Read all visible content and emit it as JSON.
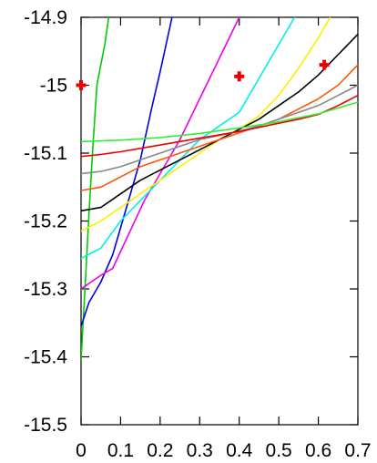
{
  "chart_data": {
    "type": "line",
    "title": "",
    "xlabel": "",
    "ylabel": "",
    "xlim": [
      0,
      0.7
    ],
    "ylim": [
      -15.5,
      -14.9
    ],
    "x_ticks": [
      {
        "value": 0,
        "label": "0"
      },
      {
        "value": 0.1,
        "label": "0.1"
      },
      {
        "value": 0.2,
        "label": "0.2"
      },
      {
        "value": 0.3,
        "label": "0.3"
      },
      {
        "value": 0.4,
        "label": "0.4"
      },
      {
        "value": 0.5,
        "label": "0.5"
      },
      {
        "value": 0.6,
        "label": "0.6"
      },
      {
        "value": 0.7,
        "label": "0.7"
      }
    ],
    "y_ticks": [
      {
        "value": -14.9,
        "label": "-14.9"
      },
      {
        "value": -15,
        "label": "-15"
      },
      {
        "value": -15.1,
        "label": "-15.1"
      },
      {
        "value": -15.2,
        "label": "-15.2"
      },
      {
        "value": -15.3,
        "label": "-15.3"
      },
      {
        "value": -15.4,
        "label": "-15.4"
      },
      {
        "value": -15.5,
        "label": "-15.5"
      }
    ],
    "grid": false,
    "legend": "none",
    "series": [
      {
        "color": "#00cc00",
        "x": [
          0,
          0.01,
          0.02,
          0.03,
          0.04,
          0.05,
          0.06,
          0.07
        ],
        "y": [
          -15.405,
          -15.3,
          -15.19,
          -15.09,
          -15.0,
          -14.97,
          -14.94,
          -14.9
        ]
      },
      {
        "color": "#0000dd",
        "x": [
          0,
          0.02,
          0.05,
          0.08,
          0.1,
          0.12,
          0.15,
          0.18,
          0.2,
          0.23
        ],
        "y": [
          -15.355,
          -15.32,
          -15.29,
          -15.25,
          -15.21,
          -15.17,
          -15.11,
          -15.03,
          -14.98,
          -14.9
        ]
      },
      {
        "color": "#ee00ee",
        "x": [
          0,
          0.05,
          0.08,
          0.12,
          0.16,
          0.2,
          0.25,
          0.3,
          0.35,
          0.4
        ],
        "y": [
          -15.3,
          -15.28,
          -15.27,
          -15.22,
          -15.17,
          -15.13,
          -15.08,
          -15.02,
          -14.96,
          -14.9
        ]
      },
      {
        "color": "#00eeee",
        "x": [
          0,
          0.05,
          0.1,
          0.15,
          0.2,
          0.25,
          0.3,
          0.35,
          0.4,
          0.45,
          0.5,
          0.54
        ],
        "y": [
          -15.255,
          -15.24,
          -15.2,
          -15.17,
          -15.14,
          -15.11,
          -15.08,
          -15.06,
          -15.04,
          -14.99,
          -14.94,
          -14.9
        ]
      },
      {
        "color": "#ffee00",
        "x": [
          0,
          0.05,
          0.1,
          0.15,
          0.2,
          0.25,
          0.3,
          0.35,
          0.4,
          0.45,
          0.5,
          0.55,
          0.6,
          0.63
        ],
        "y": [
          -15.215,
          -15.2,
          -15.18,
          -15.16,
          -15.14,
          -15.12,
          -15.1,
          -15.08,
          -15.065,
          -15.045,
          -15.015,
          -14.975,
          -14.93,
          -14.9
        ]
      },
      {
        "color": "#000000",
        "x": [
          0,
          0.05,
          0.1,
          0.15,
          0.2,
          0.25,
          0.3,
          0.35,
          0.4,
          0.45,
          0.5,
          0.55,
          0.6,
          0.65,
          0.7
        ],
        "y": [
          -15.185,
          -15.18,
          -15.16,
          -15.14,
          -15.125,
          -15.11,
          -15.095,
          -15.08,
          -15.065,
          -15.05,
          -15.03,
          -15.01,
          -14.985,
          -14.955,
          -14.925
        ]
      },
      {
        "color": "#ff5500",
        "x": [
          0,
          0.05,
          0.1,
          0.15,
          0.2,
          0.25,
          0.3,
          0.35,
          0.4,
          0.45,
          0.5,
          0.55,
          0.6,
          0.65,
          0.7
        ],
        "y": [
          -15.155,
          -15.15,
          -15.135,
          -15.12,
          -15.11,
          -15.1,
          -15.09,
          -15.08,
          -15.07,
          -15.06,
          -15.05,
          -15.035,
          -15.02,
          -15.0,
          -14.97
        ]
      },
      {
        "color": "#888888",
        "x": [
          0,
          0.05,
          0.1,
          0.15,
          0.2,
          0.25,
          0.3,
          0.35,
          0.4,
          0.45,
          0.5,
          0.55,
          0.6,
          0.65,
          0.7
        ],
        "y": [
          -15.13,
          -15.127,
          -15.12,
          -15.11,
          -15.1,
          -15.09,
          -15.08,
          -15.074,
          -15.068,
          -15.06,
          -15.05,
          -15.04,
          -15.03,
          -15.015,
          -15.0
        ]
      },
      {
        "color": "#ee0000",
        "x": [
          0,
          0.05,
          0.1,
          0.15,
          0.2,
          0.25,
          0.3,
          0.35,
          0.4,
          0.45,
          0.5,
          0.55,
          0.6,
          0.65,
          0.7
        ],
        "y": [
          -15.105,
          -15.102,
          -15.098,
          -15.093,
          -15.088,
          -15.083,
          -15.078,
          -15.073,
          -15.068,
          -15.062,
          -15.056,
          -15.05,
          -15.043,
          -15.03,
          -15.015
        ]
      },
      {
        "color": "#33ee33",
        "x": [
          0,
          0.1,
          0.2,
          0.3,
          0.4,
          0.5,
          0.6,
          0.7
        ],
        "y": [
          -15.083,
          -15.081,
          -15.077,
          -15.071,
          -15.063,
          -15.054,
          -15.042,
          -15.025
        ]
      }
    ],
    "markers": {
      "color": "#ee0000",
      "symbol": "plus",
      "x": [
        0,
        0.4,
        0.615
      ],
      "y": [
        -15.0,
        -14.987,
        -14.97
      ]
    }
  }
}
